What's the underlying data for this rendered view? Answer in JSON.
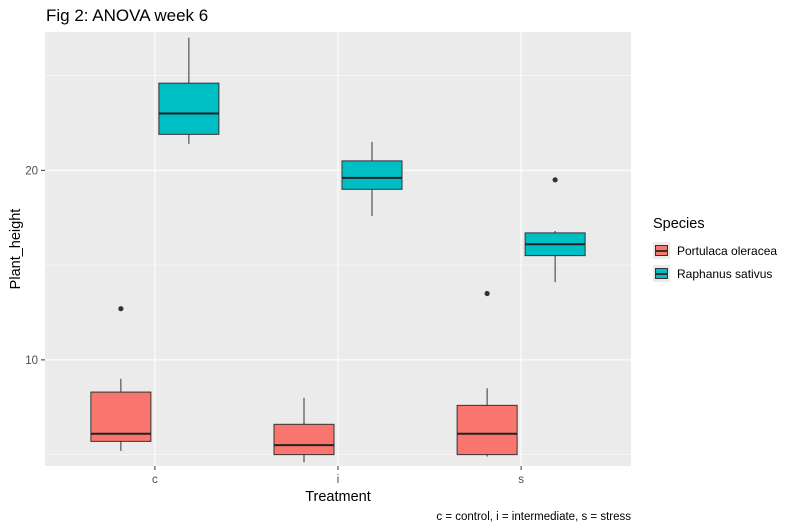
{
  "title": "Fig 2: ANOVA week 6",
  "caption": "c = control, i = intermediate, s = stress",
  "legend": {
    "title": "Species",
    "items": [
      {
        "label": "Portulaca oleracea",
        "color": "#F8766D"
      },
      {
        "label": "Raphanus sativus",
        "color": "#00BFC4"
      }
    ]
  },
  "chart_data": {
    "type": "boxplot",
    "title": "Fig 2: ANOVA week 6",
    "xlabel": "Treatment",
    "ylabel": "Plant_height",
    "categories": [
      "c",
      "i",
      "s"
    ],
    "ylim": [
      4.4,
      27.3
    ],
    "yticks": [
      10,
      20
    ],
    "grid": true,
    "legend_position": "right",
    "series": [
      {
        "name": "Portulaca oleracea",
        "color": "#F8766D",
        "boxes": [
          {
            "min": 5.2,
            "q1": 5.7,
            "median": 6.1,
            "q3": 8.3,
            "max": 9.0,
            "outliers": [
              12.7
            ]
          },
          {
            "min": 4.6,
            "q1": 5.0,
            "median": 5.5,
            "q3": 6.6,
            "max": 8.0,
            "outliers": []
          },
          {
            "min": 4.9,
            "q1": 5.0,
            "median": 6.1,
            "q3": 7.6,
            "max": 8.5,
            "outliers": [
              13.5
            ]
          }
        ]
      },
      {
        "name": "Raphanus sativus",
        "color": "#00BFC4",
        "boxes": [
          {
            "min": 21.4,
            "q1": 21.9,
            "median": 23.0,
            "q3": 24.6,
            "max": 27.0,
            "outliers": []
          },
          {
            "min": 17.6,
            "q1": 19.0,
            "median": 19.6,
            "q3": 20.5,
            "max": 21.5,
            "outliers": []
          },
          {
            "min": 14.1,
            "q1": 15.5,
            "median": 16.1,
            "q3": 16.7,
            "max": 16.8,
            "outliers": [
              19.5
            ]
          }
        ]
      }
    ]
  }
}
